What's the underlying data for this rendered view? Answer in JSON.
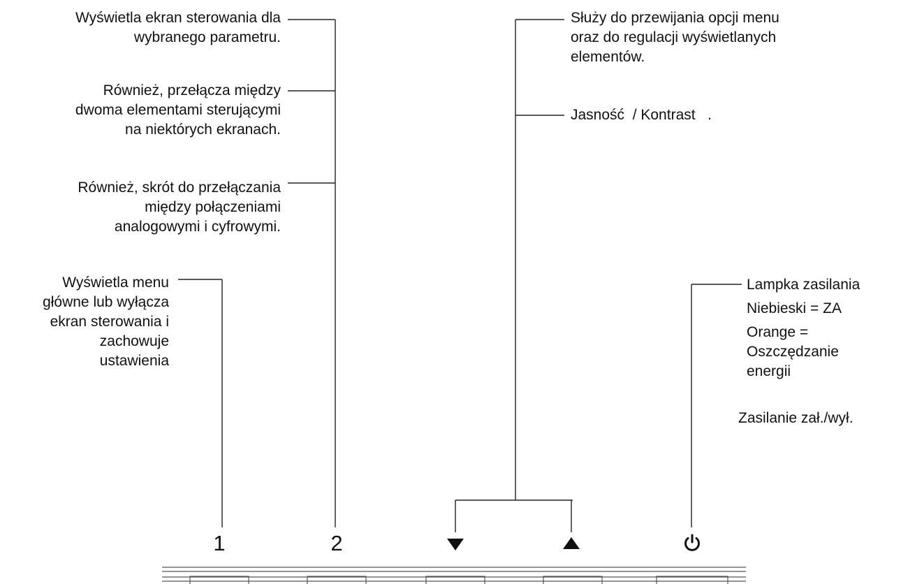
{
  "callouts": {
    "btn2_line1": [
      "Wyświetla ekran sterowania dla",
      "wybranego parametru."
    ],
    "btn2_line2": [
      "Również, przełącza między",
      "dwoma elementami sterującymi",
      "na niektórych ekranach."
    ],
    "btn2_line3": [
      "Również, skrót do przełączania",
      "między połączeniami",
      "analogowymi i cyfrowymi."
    ],
    "btn1": [
      "Wyświetla menu",
      "główne lub wyłącza",
      "ekran sterowania i",
      "zachowuje",
      "ustawienia"
    ],
    "arrows_scroll": [
      "Służy do przewijania opcji menu",
      "oraz do regulacji wyświetlanych",
      "elementów."
    ],
    "arrows_shortcut": "Jasność  / Kontrast   .",
    "power_led_title": "Lampka zasilania",
    "power_led_blue": "Niebieski = ZA",
    "power_led_orange": [
      "Orange =",
      "Oszczędzanie",
      "energii"
    ],
    "power_switch": "Zasilanie zał./wył."
  },
  "buttons": {
    "btn1_label": "1",
    "btn2_label": "2",
    "down_icon": "down-arrow-icon",
    "up_icon": "up-arrow-icon",
    "power_icon": "power-icon"
  }
}
